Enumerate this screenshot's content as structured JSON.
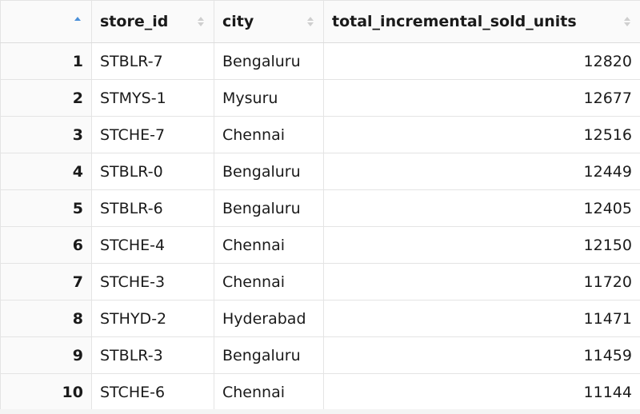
{
  "table": {
    "columns": [
      {
        "key": "rownum",
        "label": ""
      },
      {
        "key": "store_id",
        "label": "store_id"
      },
      {
        "key": "city",
        "label": "city"
      },
      {
        "key": "total_incremental_sold_units",
        "label": "total_incremental_sold_units"
      }
    ],
    "rows": [
      {
        "n": "1",
        "store_id": "STBLR-7",
        "city": "Bengaluru",
        "units": "12820"
      },
      {
        "n": "2",
        "store_id": "STMYS-1",
        "city": "Mysuru",
        "units": "12677"
      },
      {
        "n": "3",
        "store_id": "STCHE-7",
        "city": "Chennai",
        "units": "12516"
      },
      {
        "n": "4",
        "store_id": "STBLR-0",
        "city": "Bengaluru",
        "units": "12449"
      },
      {
        "n": "5",
        "store_id": "STBLR-6",
        "city": "Bengaluru",
        "units": "12405"
      },
      {
        "n": "6",
        "store_id": "STCHE-4",
        "city": "Chennai",
        "units": "12150"
      },
      {
        "n": "7",
        "store_id": "STCHE-3",
        "city": "Chennai",
        "units": "11720"
      },
      {
        "n": "8",
        "store_id": "STHYD-2",
        "city": "Hyderabad",
        "units": "11471"
      },
      {
        "n": "9",
        "store_id": "STBLR-3",
        "city": "Bengaluru",
        "units": "11459"
      },
      {
        "n": "10",
        "store_id": "STCHE-6",
        "city": "Chennai",
        "units": "11144"
      }
    ]
  },
  "icons": {
    "sort": "sort-arrows-icon",
    "sort_active": "sort-ascending-icon"
  },
  "colors": {
    "accent": "#4a90d9",
    "border": "#e4e4e4",
    "header_bg": "#fafafa"
  }
}
